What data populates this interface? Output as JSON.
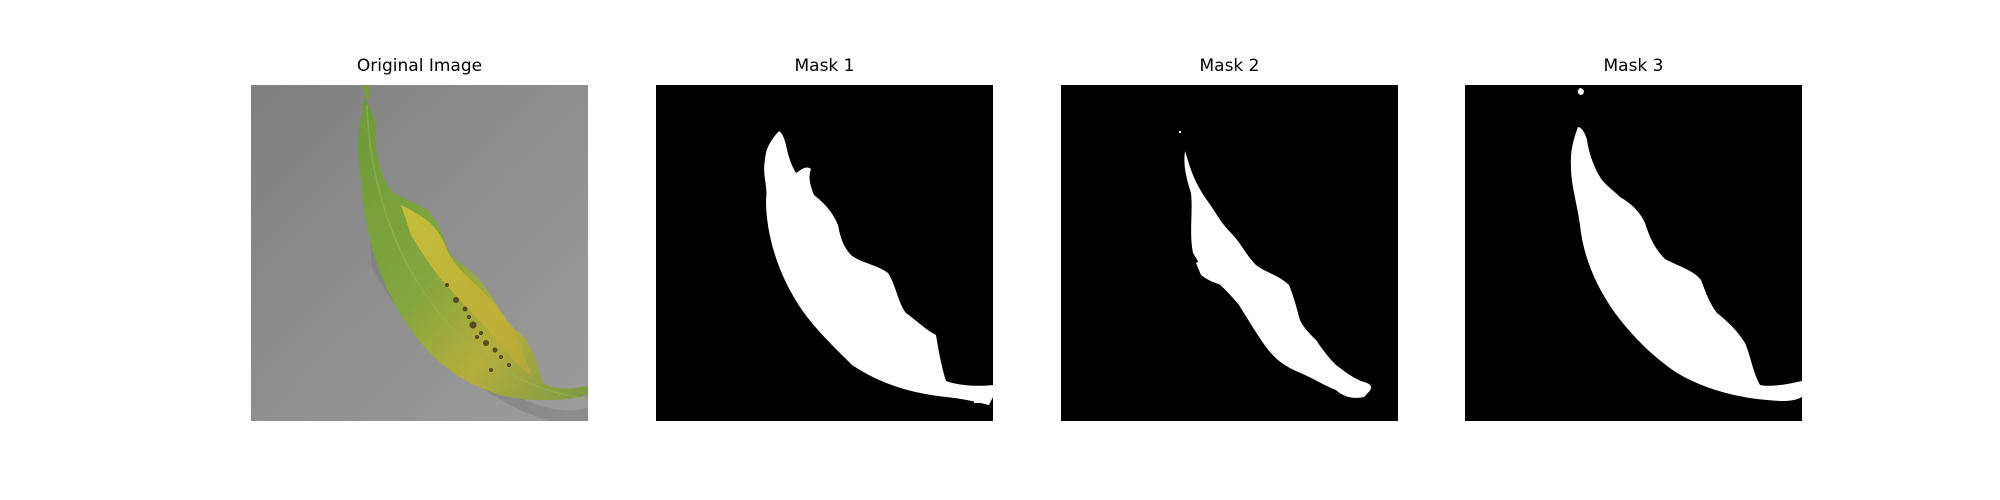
{
  "panels": [
    {
      "title": "Original Image"
    },
    {
      "title": "Mask 1"
    },
    {
      "title": "Mask 2"
    },
    {
      "title": "Mask 3"
    }
  ],
  "colors": {
    "background_gray": "#8d8d8d",
    "leaf_green": "#6e9a3e",
    "leaf_yellow": "#c6b638",
    "mask_background": "#000000",
    "mask_foreground": "#ffffff"
  }
}
